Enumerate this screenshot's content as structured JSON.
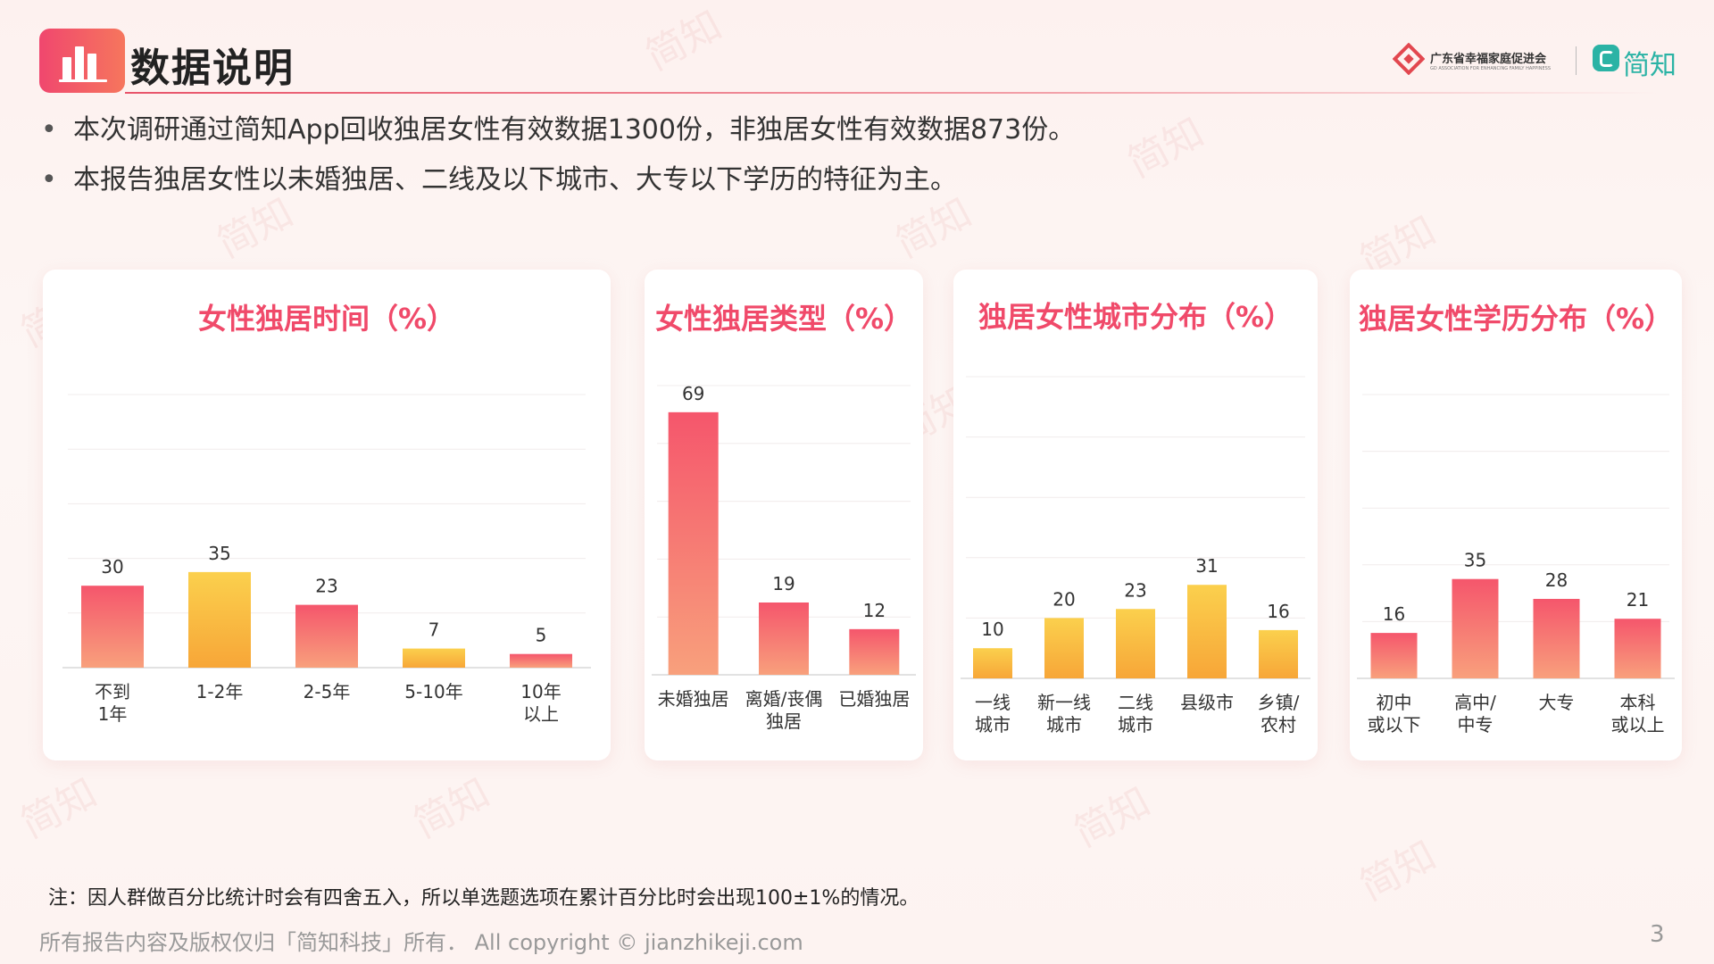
{
  "header": {
    "title": "数据说明",
    "org_name": "广东省幸福家庭促进会",
    "org_sub": "GD ASSOCIATION FOR ENHANCING FAMILY HAPPINESS",
    "app_name": "简知"
  },
  "bullets": [
    "本次调研通过简知App回收独居女性有效数据1300份，非独居女性有效数据873份。",
    "本报告独居女性以未婚独居、二线及以下城市、大专以下学历的特征为主。"
  ],
  "chart_data": [
    {
      "type": "bar",
      "title": "女性独居时间（%）",
      "categories": [
        "不到\n1年",
        "1-2年",
        "2-5年",
        "5-10年",
        "10年\n以上"
      ],
      "values": [
        30,
        35,
        23,
        7,
        5
      ],
      "highlight": [
        false,
        true,
        false,
        true,
        false
      ],
      "ylim": [
        0,
        100
      ],
      "xlabel": "",
      "ylabel": "",
      "grid": true
    },
    {
      "type": "bar",
      "title": "女性独居类型（%）",
      "categories": [
        "未婚独居",
        "离婚/丧偶\n独居",
        "已婚独居"
      ],
      "values": [
        69,
        19,
        12
      ],
      "highlight": [
        false,
        false,
        false
      ],
      "ylim": [
        0,
        76
      ],
      "xlabel": "",
      "ylabel": "",
      "grid": true
    },
    {
      "type": "bar",
      "title": "独居女性城市分布（%）",
      "categories": [
        "一线\n城市",
        "新一线\n城市",
        "二线\n城市",
        "县级市",
        "乡镇/\n农村"
      ],
      "values": [
        10,
        20,
        23,
        31,
        16
      ],
      "highlight": [
        true,
        true,
        true,
        true,
        true
      ],
      "ylim": [
        0,
        100
      ],
      "xlabel": "",
      "ylabel": "",
      "grid": true
    },
    {
      "type": "bar",
      "title": "独居女性学历分布（%）",
      "categories": [
        "初中\n或以下",
        "高中/\n中专",
        "大专",
        "本科\n或以上"
      ],
      "values": [
        16,
        35,
        28,
        21
      ],
      "highlight": [
        false,
        false,
        false,
        false
      ],
      "ylim": [
        0,
        100
      ],
      "xlabel": "",
      "ylabel": "",
      "grid": true
    }
  ],
  "colors": {
    "bar_pink_top": "#f5566c",
    "bar_pink_bottom": "#f8a07c",
    "bar_yellow_top": "#fbd04d",
    "bar_yellow_bottom": "#f7a638",
    "title_accent": "#f04a6a",
    "app_brand": "#2bb3a5"
  },
  "footer": {
    "note": "注：因人群做百分比统计时会有四舍五入，所以单选题选项在累计百分比时会出现100±1%的情况。",
    "copyright": "所有报告内容及版权仅归「简知科技」所有． All copyright © jianzhikeji.com",
    "page_number": "3"
  },
  "watermark": "简知"
}
